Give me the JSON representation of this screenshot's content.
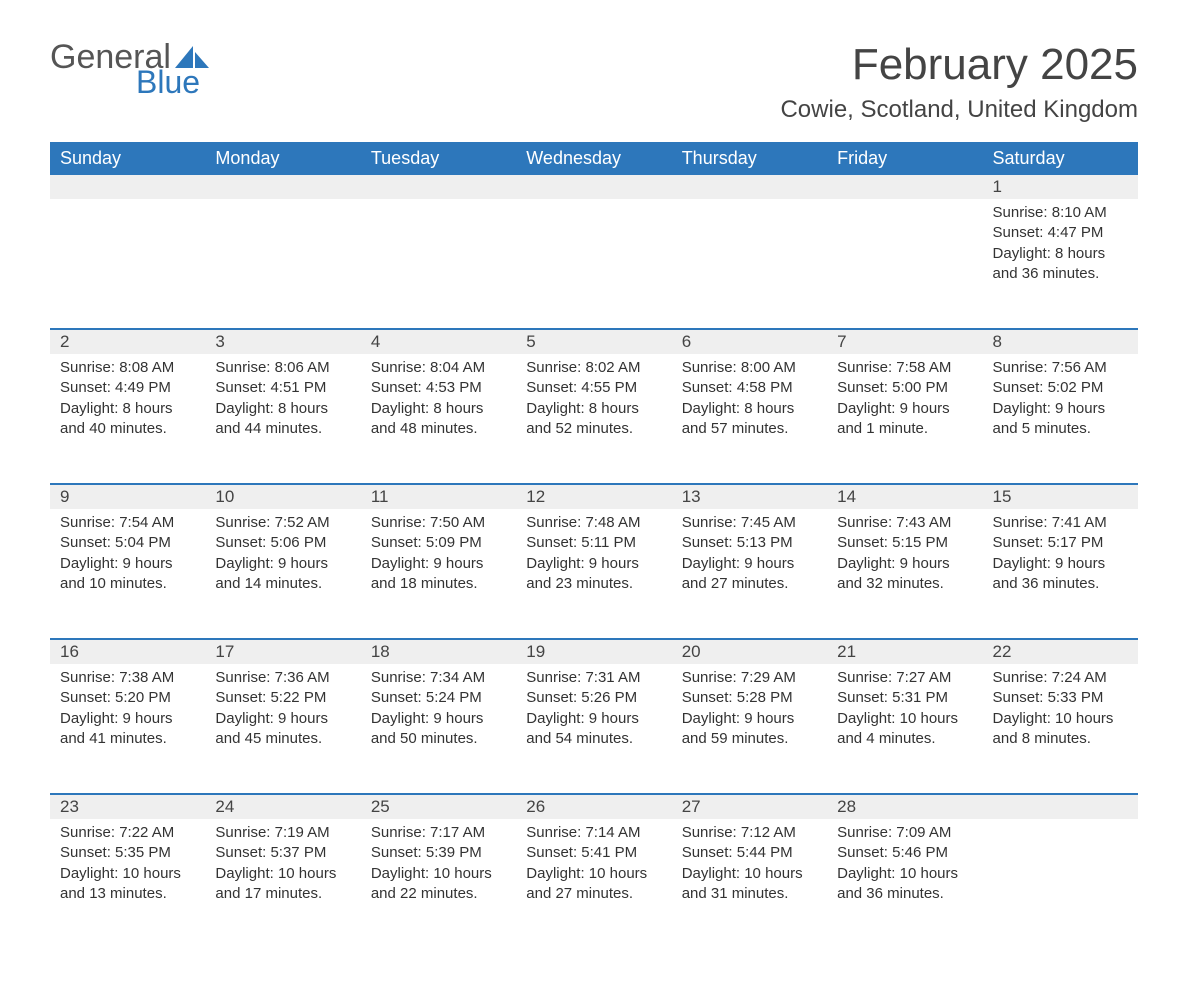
{
  "logo": {
    "textGeneral": "General",
    "textBlue": "Blue",
    "sailColor": "#2d77bb"
  },
  "header": {
    "monthTitle": "February 2025",
    "location": "Cowie, Scotland, United Kingdom"
  },
  "colors": {
    "headerBg": "#2d77bb",
    "headerText": "#ffffff",
    "dayNumBg": "#efefef",
    "bodyText": "#333333",
    "rowBorder": "#2d77bb"
  },
  "weekdays": [
    "Sunday",
    "Monday",
    "Tuesday",
    "Wednesday",
    "Thursday",
    "Friday",
    "Saturday"
  ],
  "weeks": [
    [
      null,
      null,
      null,
      null,
      null,
      null,
      {
        "num": "1",
        "sunrise": "Sunrise: 8:10 AM",
        "sunset": "Sunset: 4:47 PM",
        "daylight": "Daylight: 8 hours and 36 minutes."
      }
    ],
    [
      {
        "num": "2",
        "sunrise": "Sunrise: 8:08 AM",
        "sunset": "Sunset: 4:49 PM",
        "daylight": "Daylight: 8 hours and 40 minutes."
      },
      {
        "num": "3",
        "sunrise": "Sunrise: 8:06 AM",
        "sunset": "Sunset: 4:51 PM",
        "daylight": "Daylight: 8 hours and 44 minutes."
      },
      {
        "num": "4",
        "sunrise": "Sunrise: 8:04 AM",
        "sunset": "Sunset: 4:53 PM",
        "daylight": "Daylight: 8 hours and 48 minutes."
      },
      {
        "num": "5",
        "sunrise": "Sunrise: 8:02 AM",
        "sunset": "Sunset: 4:55 PM",
        "daylight": "Daylight: 8 hours and 52 minutes."
      },
      {
        "num": "6",
        "sunrise": "Sunrise: 8:00 AM",
        "sunset": "Sunset: 4:58 PM",
        "daylight": "Daylight: 8 hours and 57 minutes."
      },
      {
        "num": "7",
        "sunrise": "Sunrise: 7:58 AM",
        "sunset": "Sunset: 5:00 PM",
        "daylight": "Daylight: 9 hours and 1 minute."
      },
      {
        "num": "8",
        "sunrise": "Sunrise: 7:56 AM",
        "sunset": "Sunset: 5:02 PM",
        "daylight": "Daylight: 9 hours and 5 minutes."
      }
    ],
    [
      {
        "num": "9",
        "sunrise": "Sunrise: 7:54 AM",
        "sunset": "Sunset: 5:04 PM",
        "daylight": "Daylight: 9 hours and 10 minutes."
      },
      {
        "num": "10",
        "sunrise": "Sunrise: 7:52 AM",
        "sunset": "Sunset: 5:06 PM",
        "daylight": "Daylight: 9 hours and 14 minutes."
      },
      {
        "num": "11",
        "sunrise": "Sunrise: 7:50 AM",
        "sunset": "Sunset: 5:09 PM",
        "daylight": "Daylight: 9 hours and 18 minutes."
      },
      {
        "num": "12",
        "sunrise": "Sunrise: 7:48 AM",
        "sunset": "Sunset: 5:11 PM",
        "daylight": "Daylight: 9 hours and 23 minutes."
      },
      {
        "num": "13",
        "sunrise": "Sunrise: 7:45 AM",
        "sunset": "Sunset: 5:13 PM",
        "daylight": "Daylight: 9 hours and 27 minutes."
      },
      {
        "num": "14",
        "sunrise": "Sunrise: 7:43 AM",
        "sunset": "Sunset: 5:15 PM",
        "daylight": "Daylight: 9 hours and 32 minutes."
      },
      {
        "num": "15",
        "sunrise": "Sunrise: 7:41 AM",
        "sunset": "Sunset: 5:17 PM",
        "daylight": "Daylight: 9 hours and 36 minutes."
      }
    ],
    [
      {
        "num": "16",
        "sunrise": "Sunrise: 7:38 AM",
        "sunset": "Sunset: 5:20 PM",
        "daylight": "Daylight: 9 hours and 41 minutes."
      },
      {
        "num": "17",
        "sunrise": "Sunrise: 7:36 AM",
        "sunset": "Sunset: 5:22 PM",
        "daylight": "Daylight: 9 hours and 45 minutes."
      },
      {
        "num": "18",
        "sunrise": "Sunrise: 7:34 AM",
        "sunset": "Sunset: 5:24 PM",
        "daylight": "Daylight: 9 hours and 50 minutes."
      },
      {
        "num": "19",
        "sunrise": "Sunrise: 7:31 AM",
        "sunset": "Sunset: 5:26 PM",
        "daylight": "Daylight: 9 hours and 54 minutes."
      },
      {
        "num": "20",
        "sunrise": "Sunrise: 7:29 AM",
        "sunset": "Sunset: 5:28 PM",
        "daylight": "Daylight: 9 hours and 59 minutes."
      },
      {
        "num": "21",
        "sunrise": "Sunrise: 7:27 AM",
        "sunset": "Sunset: 5:31 PM",
        "daylight": "Daylight: 10 hours and 4 minutes."
      },
      {
        "num": "22",
        "sunrise": "Sunrise: 7:24 AM",
        "sunset": "Sunset: 5:33 PM",
        "daylight": "Daylight: 10 hours and 8 minutes."
      }
    ],
    [
      {
        "num": "23",
        "sunrise": "Sunrise: 7:22 AM",
        "sunset": "Sunset: 5:35 PM",
        "daylight": "Daylight: 10 hours and 13 minutes."
      },
      {
        "num": "24",
        "sunrise": "Sunrise: 7:19 AM",
        "sunset": "Sunset: 5:37 PM",
        "daylight": "Daylight: 10 hours and 17 minutes."
      },
      {
        "num": "25",
        "sunrise": "Sunrise: 7:17 AM",
        "sunset": "Sunset: 5:39 PM",
        "daylight": "Daylight: 10 hours and 22 minutes."
      },
      {
        "num": "26",
        "sunrise": "Sunrise: 7:14 AM",
        "sunset": "Sunset: 5:41 PM",
        "daylight": "Daylight: 10 hours and 27 minutes."
      },
      {
        "num": "27",
        "sunrise": "Sunrise: 7:12 AM",
        "sunset": "Sunset: 5:44 PM",
        "daylight": "Daylight: 10 hours and 31 minutes."
      },
      {
        "num": "28",
        "sunrise": "Sunrise: 7:09 AM",
        "sunset": "Sunset: 5:46 PM",
        "daylight": "Daylight: 10 hours and 36 minutes."
      },
      null
    ]
  ]
}
